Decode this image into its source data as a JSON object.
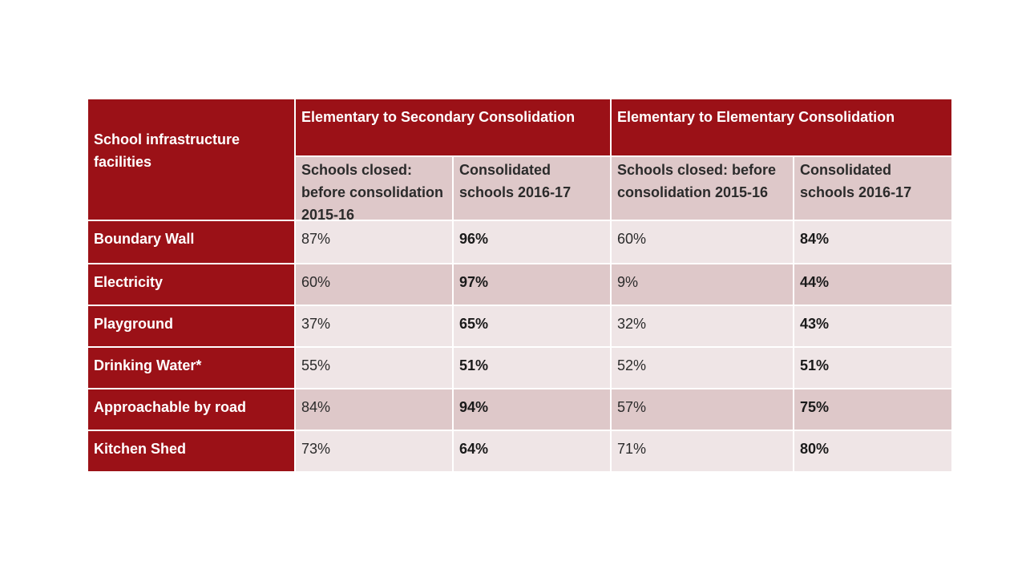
{
  "chart_data": {
    "type": "table",
    "corner_header": "School infrastructure facilities",
    "groups": [
      {
        "label": "Elementary to Secondary Consolidation",
        "subheaders": [
          "Schools closed: before consolidation 2015-16",
          "Consolidated schools 2016-17"
        ]
      },
      {
        "label": "Elementary to Elementary Consolidation",
        "subheaders": [
          "Schools closed: before consolidation 2015-16",
          "Consolidated schools 2016-17"
        ]
      }
    ],
    "rows": [
      {
        "label": "Boundary Wall",
        "values": [
          "87%",
          "96%",
          "60%",
          "84%"
        ]
      },
      {
        "label": "Electricity",
        "values": [
          "60%",
          "97%",
          "9%",
          "44%"
        ]
      },
      {
        "label": "Playground",
        "values": [
          "37%",
          "65%",
          "32%",
          "43%"
        ]
      },
      {
        "label": "Drinking Water*",
        "values": [
          "55%",
          "51%",
          "52%",
          "51%"
        ]
      },
      {
        "label": "Approachable by road",
        "values": [
          "84%",
          "94%",
          "57%",
          "75%"
        ]
      },
      {
        "label": "Kitchen Shed",
        "values": [
          "73%",
          "64%",
          "71%",
          "80%"
        ]
      }
    ]
  },
  "colors": {
    "header": "#9b1117",
    "header_text": "#ffffff",
    "band_light": "#efe5e6",
    "band_dark": "#dec8c9"
  }
}
